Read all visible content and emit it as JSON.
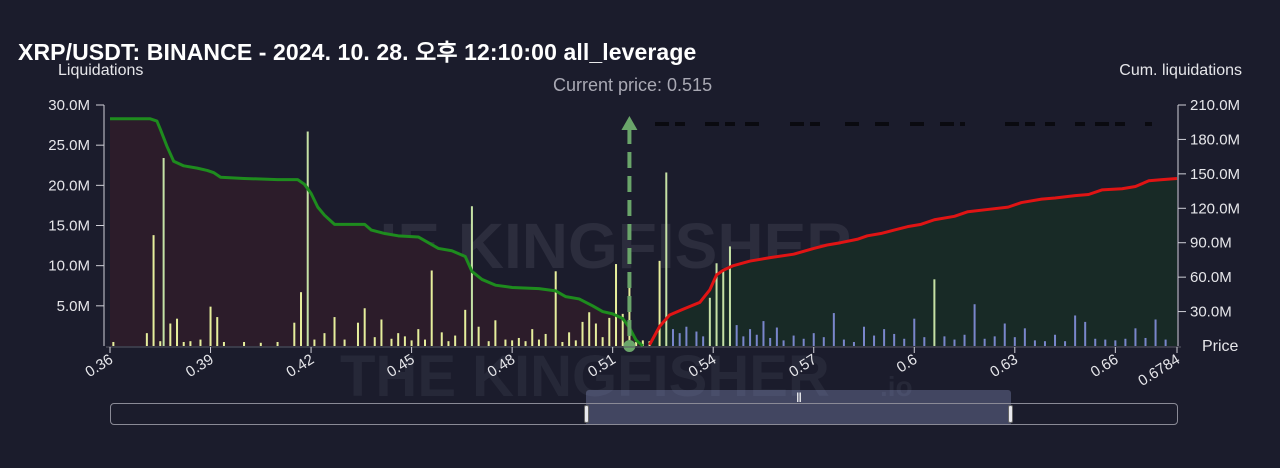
{
  "title": "XRP/USDT: BINANCE - 2024. 10. 28. 오후 12:10:00 all_leverage",
  "left_axis_title": "Liquidations",
  "right_axis_title": "Cum. liquidations",
  "x_axis_title": "Price",
  "current_price_label": "Current price: 0.515",
  "watermark_text": "THE KINGFISHER",
  "watermark_suffix": ".io",
  "navigator_grip": "|||",
  "colors": {
    "background": "#1b1c2c",
    "short_area": "#2c1c2a",
    "long_area": "#182a26",
    "short_line": "#1e8c1e",
    "long_line": "#e01414",
    "short_bars": "#e6ee9c",
    "long_bars": "#7986cb",
    "current_price_marker": "#6aa56a",
    "short_bar_highlight": "#c5e1a5"
  },
  "chart_data": {
    "type": "bar+area",
    "title": "XRP/USDT: BINANCE - 2024. 10. 28. 오후 12:10:00 all_leverage",
    "xlabel": "Price",
    "ylabel_left": "Liquidations",
    "ylabel_right": "Cum. liquidations",
    "xlim": [
      0.36,
      0.6784
    ],
    "ylim_left": [
      0,
      30000000
    ],
    "ylim_right": [
      0,
      210000000
    ],
    "x_ticks": [
      "0.36",
      "0.39",
      "0.42",
      "0.45",
      "0.48",
      "0.51",
      "0.54",
      "0.57",
      "0.6",
      "0.63",
      "0.66",
      "0.6784"
    ],
    "x_tick_values": [
      0.36,
      0.39,
      0.42,
      0.45,
      0.48,
      0.51,
      0.54,
      0.57,
      0.6,
      0.63,
      0.66,
      0.6784
    ],
    "y_left_ticks": [
      "5.0M",
      "10.0M",
      "15.0M",
      "20.0M",
      "25.0M",
      "30.0M"
    ],
    "y_left_tick_values": [
      5000000,
      10000000,
      15000000,
      20000000,
      25000000,
      30000000
    ],
    "y_right_ticks": [
      "30.0M",
      "60.0M",
      "90.0M",
      "120.0M",
      "150.0M",
      "180.0M",
      "210.0M"
    ],
    "y_right_tick_values": [
      30000000,
      60000000,
      90000000,
      120000000,
      150000000,
      180000000,
      210000000
    ],
    "current_price": 0.515,
    "short_bars": [
      [
        0.361,
        0.5
      ],
      [
        0.371,
        1.6
      ],
      [
        0.373,
        13.8
      ],
      [
        0.375,
        0.6
      ],
      [
        0.376,
        23.4
      ],
      [
        0.378,
        2.8
      ],
      [
        0.38,
        3.4
      ],
      [
        0.382,
        0.5
      ],
      [
        0.384,
        0.6
      ],
      [
        0.387,
        0.8
      ],
      [
        0.39,
        4.9
      ],
      [
        0.392,
        3.6
      ],
      [
        0.394,
        0.5
      ],
      [
        0.4,
        0.5
      ],
      [
        0.405,
        0.4
      ],
      [
        0.41,
        0.5
      ],
      [
        0.415,
        2.9
      ],
      [
        0.417,
        6.7
      ],
      [
        0.419,
        26.7
      ],
      [
        0.421,
        0.8
      ],
      [
        0.424,
        1.6
      ],
      [
        0.427,
        3.6
      ],
      [
        0.43,
        0.8
      ],
      [
        0.434,
        2.9
      ],
      [
        0.436,
        4.7
      ],
      [
        0.439,
        1.1
      ],
      [
        0.441,
        3.3
      ],
      [
        0.444,
        0.9
      ],
      [
        0.446,
        1.6
      ],
      [
        0.448,
        1.2
      ],
      [
        0.45,
        0.7
      ],
      [
        0.452,
        2.1
      ],
      [
        0.454,
        0.8
      ],
      [
        0.456,
        9.4
      ],
      [
        0.459,
        1.7
      ],
      [
        0.461,
        0.6
      ],
      [
        0.463,
        1.3
      ],
      [
        0.466,
        4.5
      ],
      [
        0.468,
        17.4
      ],
      [
        0.47,
        2.4
      ],
      [
        0.473,
        0.6
      ],
      [
        0.475,
        3.2
      ],
      [
        0.478,
        0.8
      ],
      [
        0.48,
        0.7
      ],
      [
        0.482,
        1.0
      ],
      [
        0.484,
        0.6
      ],
      [
        0.486,
        2.1
      ],
      [
        0.488,
        0.8
      ],
      [
        0.49,
        1.5
      ],
      [
        0.493,
        9.3
      ],
      [
        0.495,
        0.5
      ],
      [
        0.497,
        1.7
      ],
      [
        0.499,
        0.7
      ],
      [
        0.501,
        3.0
      ],
      [
        0.503,
        4.2
      ],
      [
        0.505,
        2.8
      ],
      [
        0.507,
        1.1
      ],
      [
        0.509,
        3.5
      ],
      [
        0.511,
        10.2
      ],
      [
        0.513,
        4.0
      ],
      [
        0.515,
        7.4
      ],
      [
        0.517,
        0.5
      ],
      [
        0.519,
        0.7
      ],
      [
        0.521,
        0.6
      ],
      [
        0.524,
        10.6
      ],
      [
        0.526,
        21.6
      ]
    ],
    "long_bars": [
      [
        0.528,
        2.1
      ],
      [
        0.53,
        1.6
      ],
      [
        0.532,
        2.4
      ],
      [
        0.535,
        1.8
      ],
      [
        0.537,
        1.2
      ],
      [
        0.539,
        6.0
      ],
      [
        0.541,
        10.3
      ],
      [
        0.543,
        9.3
      ],
      [
        0.545,
        12.4
      ],
      [
        0.547,
        2.6
      ],
      [
        0.549,
        1.2
      ],
      [
        0.551,
        2.1
      ],
      [
        0.553,
        1.4
      ],
      [
        0.555,
        3.1
      ],
      [
        0.557,
        1.0
      ],
      [
        0.559,
        2.3
      ],
      [
        0.561,
        0.7
      ],
      [
        0.564,
        1.3
      ],
      [
        0.567,
        0.9
      ],
      [
        0.57,
        1.6
      ],
      [
        0.573,
        1.1
      ],
      [
        0.576,
        4.1
      ],
      [
        0.579,
        0.8
      ],
      [
        0.582,
        0.5
      ],
      [
        0.585,
        2.4
      ],
      [
        0.588,
        1.3
      ],
      [
        0.591,
        2.1
      ],
      [
        0.594,
        1.5
      ],
      [
        0.597,
        0.9
      ],
      [
        0.6,
        3.4
      ],
      [
        0.603,
        1.1
      ],
      [
        0.606,
        8.3
      ],
      [
        0.609,
        1.2
      ],
      [
        0.612,
        0.8
      ],
      [
        0.615,
        1.4
      ],
      [
        0.618,
        5.2
      ],
      [
        0.621,
        0.9
      ],
      [
        0.624,
        1.2
      ],
      [
        0.627,
        2.8
      ],
      [
        0.63,
        1.1
      ],
      [
        0.633,
        2.2
      ],
      [
        0.636,
        0.7
      ],
      [
        0.639,
        0.6
      ],
      [
        0.642,
        1.4
      ],
      [
        0.645,
        0.6
      ],
      [
        0.648,
        3.8
      ],
      [
        0.651,
        3.0
      ],
      [
        0.654,
        0.9
      ],
      [
        0.657,
        0.8
      ],
      [
        0.66,
        0.7
      ],
      [
        0.663,
        0.9
      ],
      [
        0.666,
        2.2
      ],
      [
        0.669,
        1.0
      ],
      [
        0.672,
        3.3
      ],
      [
        0.675,
        0.8
      ]
    ],
    "short_cum": [
      [
        0.36,
        198
      ],
      [
        0.372,
        198
      ],
      [
        0.374,
        196
      ],
      [
        0.375,
        189
      ],
      [
        0.377,
        174
      ],
      [
        0.379,
        161
      ],
      [
        0.382,
        157
      ],
      [
        0.386,
        155
      ],
      [
        0.389,
        153
      ],
      [
        0.391,
        151
      ],
      [
        0.393,
        147
      ],
      [
        0.4,
        146
      ],
      [
        0.41,
        145
      ],
      [
        0.416,
        145
      ],
      [
        0.418,
        141
      ],
      [
        0.42,
        133
      ],
      [
        0.422,
        121
      ],
      [
        0.424,
        114
      ],
      [
        0.427,
        106
      ],
      [
        0.436,
        106
      ],
      [
        0.438,
        101
      ],
      [
        0.442,
        98
      ],
      [
        0.446,
        96
      ],
      [
        0.452,
        95
      ],
      [
        0.455,
        90
      ],
      [
        0.458,
        85
      ],
      [
        0.462,
        83
      ],
      [
        0.466,
        78
      ],
      [
        0.468,
        65
      ],
      [
        0.471,
        58
      ],
      [
        0.475,
        53
      ],
      [
        0.48,
        51
      ],
      [
        0.488,
        50
      ],
      [
        0.493,
        48
      ],
      [
        0.496,
        43
      ],
      [
        0.5,
        41
      ],
      [
        0.504,
        35
      ],
      [
        0.507,
        30
      ],
      [
        0.51,
        28
      ],
      [
        0.513,
        24
      ],
      [
        0.515,
        16
      ],
      [
        0.517,
        5
      ],
      [
        0.519,
        0
      ]
    ],
    "long_cum": [
      [
        0.521,
        1
      ],
      [
        0.524,
        17
      ],
      [
        0.527,
        27
      ],
      [
        0.531,
        32
      ],
      [
        0.536,
        38
      ],
      [
        0.539,
        49
      ],
      [
        0.541,
        62
      ],
      [
        0.543,
        66
      ],
      [
        0.546,
        70
      ],
      [
        0.551,
        74
      ],
      [
        0.557,
        77
      ],
      [
        0.564,
        80
      ],
      [
        0.57,
        85
      ],
      [
        0.574,
        88
      ],
      [
        0.578,
        90
      ],
      [
        0.583,
        93
      ],
      [
        0.586,
        96
      ],
      [
        0.59,
        98
      ],
      [
        0.594,
        101
      ],
      [
        0.598,
        104
      ],
      [
        0.602,
        106
      ],
      [
        0.606,
        110
      ],
      [
        0.612,
        113
      ],
      [
        0.616,
        117
      ],
      [
        0.622,
        119
      ],
      [
        0.628,
        121
      ],
      [
        0.632,
        125
      ],
      [
        0.638,
        128
      ],
      [
        0.642,
        129
      ],
      [
        0.648,
        131
      ],
      [
        0.652,
        132
      ],
      [
        0.656,
        136
      ],
      [
        0.662,
        137
      ],
      [
        0.666,
        139
      ],
      [
        0.67,
        144
      ],
      [
        0.674,
        145
      ],
      [
        0.6784,
        146
      ]
    ],
    "value_units": {
      "bars": "millions",
      "cumulative": "millions"
    }
  }
}
